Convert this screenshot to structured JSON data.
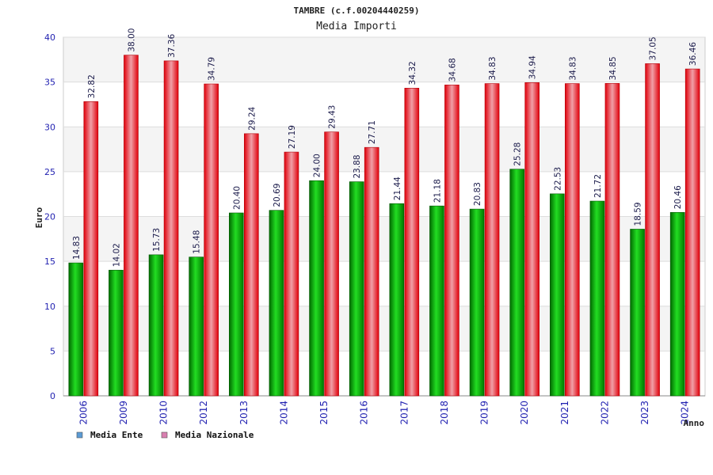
{
  "chart_data": {
    "type": "bar",
    "title": "TAMBRE (c.f.00204440259)",
    "subtitle": "Media Importi",
    "xlabel": "Anno",
    "ylabel": "Euro",
    "ylim": [
      0,
      40
    ],
    "yticks": [
      0,
      5,
      10,
      15,
      20,
      25,
      30,
      35,
      40
    ],
    "grid": true,
    "legend_position": "bottom-left",
    "categories": [
      "2006",
      "2009",
      "2010",
      "2012",
      "2013",
      "2014",
      "2015",
      "2016",
      "2017",
      "2018",
      "2019",
      "2020",
      "2021",
      "2022",
      "2023",
      "2024"
    ],
    "series": [
      {
        "name": "Media Ente",
        "legend_color": "#5b9bd5",
        "bar_color": "#00b000",
        "values": [
          14.83,
          14.02,
          15.73,
          15.48,
          20.4,
          20.69,
          24.0,
          23.88,
          21.44,
          21.18,
          20.83,
          25.28,
          22.53,
          21.72,
          18.59,
          20.46
        ],
        "labels": [
          "14.83",
          "14.02",
          "15.73",
          "15.48",
          "20.40",
          "20.69",
          "24.00",
          "23.88",
          "21.44",
          "21.18",
          "20.83",
          "25.28",
          "22.53",
          "21.72",
          "18.59",
          "20.46"
        ]
      },
      {
        "name": "Media Nazionale",
        "legend_color": "#d97fb0",
        "bar_color": "#e8000a",
        "values": [
          32.82,
          38.0,
          37.36,
          34.79,
          29.24,
          27.19,
          29.43,
          27.71,
          34.32,
          34.68,
          34.83,
          34.94,
          34.83,
          34.85,
          37.05,
          36.46
        ],
        "labels": [
          "32.82",
          "38.00",
          "37.36",
          "34.79",
          "29.24",
          "27.19",
          "29.43",
          "27.71",
          "34.32",
          "34.68",
          "34.83",
          "34.94",
          "34.83",
          "34.85",
          "37.05",
          "36.46"
        ]
      }
    ]
  }
}
